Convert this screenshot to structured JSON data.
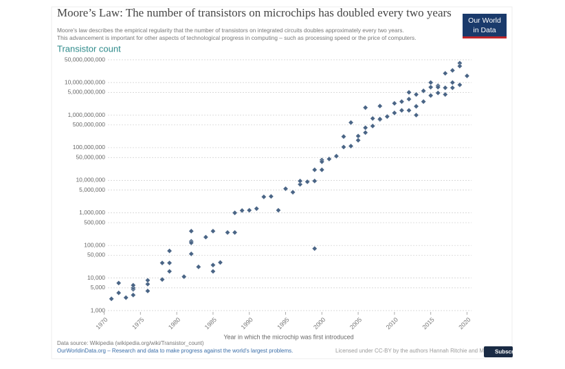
{
  "chart_data": {
    "type": "scatter",
    "title": "Moore’s Law: The number of transistors on microchips has doubled every two years",
    "subtitle": [
      "Moore's law describes the empirical regularity that the number of transistors on integrated circuits doubles approximately every two years.",
      "This advancement is important for other aspects of technological progress in computing – such as processing speed or the price of computers."
    ],
    "logo": [
      "Our World",
      "in Data"
    ],
    "ylabel": "Transistor count",
    "xlabel": "Year in which the microchip was first introduced",
    "source": "Data source: Wikipedia (wikipedia.org/wiki/Transistor_count)",
    "footer": "OurWorldinData.org – Research and data to make progress against the world's largest problems.",
    "license": "Licensed under CC-BY by the authors Hannah Ritchie and M",
    "button": "Subscri",
    "log_y": true,
    "grid": true,
    "color": "#4a6586",
    "xlim": [
      1969,
      2021
    ],
    "xticks": [
      1970,
      1975,
      1980,
      1985,
      1990,
      1995,
      2000,
      2005,
      2010,
      2015,
      2020
    ],
    "ylim": [
      1000,
      50000000000
    ],
    "yticks": [
      {
        "value": 50000000000,
        "label": "50,000,000,000"
      },
      {
        "value": 10000000000,
        "label": "10,000,000,000"
      },
      {
        "value": 5000000000,
        "label": "5,000,000,000"
      },
      {
        "value": 1000000000,
        "label": "1,000,000,000"
      },
      {
        "value": 500000000,
        "label": "500,000,000"
      },
      {
        "value": 100000000,
        "label": "100,000,000"
      },
      {
        "value": 50000000,
        "label": "50,000,000"
      },
      {
        "value": 10000000,
        "label": "10,000,000"
      },
      {
        "value": 5000000,
        "label": "5,000,000"
      },
      {
        "value": 1000000,
        "label": "1,000,000"
      },
      {
        "value": 500000,
        "label": "500,000"
      },
      {
        "value": 100000,
        "label": "100,000"
      },
      {
        "value": 50000,
        "label": "50,000"
      },
      {
        "value": 10000,
        "label": "10,000"
      },
      {
        "value": 5000,
        "label": "5,000"
      },
      {
        "value": 1000,
        "label": "1,000"
      }
    ],
    "x": [
      1971,
      1972,
      1972,
      1973,
      1974,
      1974,
      1974,
      1974,
      1976,
      1976,
      1976,
      1978,
      1978,
      1979,
      1979,
      1979,
      1981,
      1982,
      1982,
      1982,
      1982,
      1983,
      1984,
      1985,
      1985,
      1985,
      1986,
      1987,
      1988,
      1988,
      1989,
      1990,
      1991,
      1992,
      1993,
      1994,
      1995,
      1996,
      1997,
      1997,
      1998,
      1999,
      1999,
      1999,
      2000,
      2000,
      2000,
      2001,
      2002,
      2003,
      2003,
      2004,
      2004,
      2005,
      2005,
      2006,
      2006,
      2006,
      2007,
      2007,
      2008,
      2008,
      2008,
      2009,
      2010,
      2010,
      2010,
      2011,
      2011,
      2012,
      2012,
      2012,
      2013,
      2013,
      2013,
      2014,
      2014,
      2015,
      2015,
      2015,
      2016,
      2016,
      2016,
      2017,
      2017,
      2017,
      2018,
      2018,
      2018,
      2019,
      2019,
      2019,
      2020
    ],
    "values": [
      2300,
      3500,
      7000,
      2500,
      4500,
      5000,
      6000,
      3000,
      6500,
      8500,
      4000,
      29000,
      9000,
      68000,
      29000,
      16000,
      11000,
      134000,
      55000,
      120000,
      275000,
      22000,
      180000,
      275000,
      25000,
      16000,
      30000,
      250000,
      250000,
      1000000,
      1180000,
      1200000,
      1350000,
      3100000,
      3200000,
      1200000,
      5500000,
      4300000,
      7500000,
      9500000,
      9000000,
      9500000,
      21000000,
      80000,
      42000000,
      37000000,
      21000000,
      45000000,
      55000000,
      220000000,
      105000000,
      112000000,
      592000000,
      228000000,
      169000000,
      291000000,
      410000000,
      1700000000,
      463000000,
      789000000,
      731000000,
      1900000000,
      758000000,
      904000000,
      2300000000,
      1170000000,
      1170000000,
      2600000000,
      1400000000,
      5000000000,
      1400000000,
      3100000000,
      4300000000,
      1860000000,
      1000000000,
      5560000000,
      2600000000,
      7200000000,
      4000000000,
      10000000000,
      4800000000,
      8000000000,
      7200000000,
      19200000000,
      4300000000,
      6900000000,
      23600000000,
      10000000000,
      6900000000,
      39500000000,
      32000000000,
      8500000000,
      16000000000
    ]
  }
}
